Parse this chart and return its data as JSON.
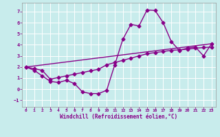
{
  "xlabel": "Windchill (Refroidissement éolien,°C)",
  "background_color": "#c8ecec",
  "grid_color": "#b0d8d8",
  "line_color": "#880088",
  "xlim": [
    -0.5,
    23.5
  ],
  "ylim": [
    -1.6,
    7.8
  ],
  "xticks": [
    0,
    1,
    2,
    3,
    4,
    5,
    6,
    7,
    8,
    9,
    10,
    11,
    12,
    13,
    14,
    15,
    16,
    17,
    18,
    19,
    20,
    21,
    22,
    23
  ],
  "yticks": [
    -1,
    0,
    1,
    2,
    3,
    4,
    5,
    6,
    7
  ],
  "line1_x": [
    0,
    1,
    2,
    3,
    4,
    5,
    6,
    7,
    8,
    9,
    10,
    11,
    12,
    13,
    14,
    15,
    16,
    17,
    18,
    19,
    20,
    21,
    22,
    23
  ],
  "line1_y": [
    2.0,
    1.7,
    1.2,
    0.7,
    0.6,
    0.8,
    0.5,
    -0.25,
    -0.4,
    -0.4,
    -0.1,
    2.2,
    4.5,
    5.85,
    5.7,
    7.15,
    7.1,
    6.0,
    4.3,
    3.5,
    3.7,
    3.8,
    3.0,
    4.1
  ],
  "line2_x": [
    0,
    1,
    2,
    3,
    4,
    5,
    6,
    7,
    8,
    9,
    10,
    11,
    12,
    13,
    14,
    15,
    16,
    17,
    18,
    19,
    20,
    21,
    22,
    23
  ],
  "line2_y": [
    2.0,
    1.85,
    1.7,
    0.9,
    1.05,
    1.2,
    1.35,
    1.5,
    1.65,
    1.8,
    2.2,
    2.4,
    2.6,
    2.8,
    3.0,
    3.2,
    3.3,
    3.4,
    3.5,
    3.55,
    3.6,
    3.7,
    3.75,
    3.8
  ],
  "line3_x": [
    0,
    23
  ],
  "line3_y": [
    2.0,
    4.1
  ],
  "marker": "D",
  "markersize": 2.5,
  "linewidth": 1.0
}
